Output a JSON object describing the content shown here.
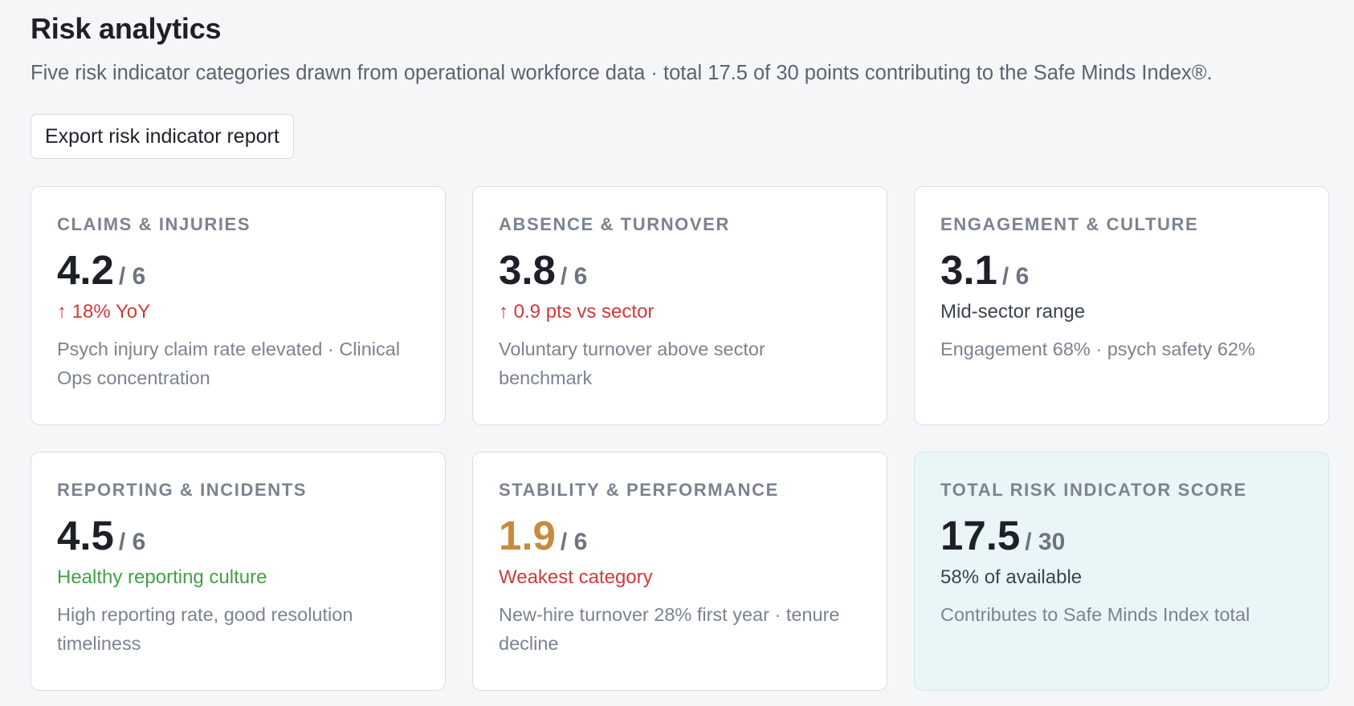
{
  "header": {
    "title": "Risk analytics",
    "subtitle": "Five risk indicator categories drawn from operational workforce data · total 17.5 of 30 points contributing to the Safe Minds Index®.",
    "export_label": "Export risk indicator report"
  },
  "cards": [
    {
      "label": "CLAIMS & INJURIES",
      "score": "4.2",
      "max": "/ 6",
      "status": "↑ 18% YoY",
      "description": "Psych injury claim rate elevated · Clinical Ops concentration"
    },
    {
      "label": "ABSENCE & TURNOVER",
      "score": "3.8",
      "max": "/ 6",
      "status": "↑ 0.9 pts vs sector",
      "description": "Voluntary turnover above sector benchmark"
    },
    {
      "label": "ENGAGEMENT & CULTURE",
      "score": "3.1",
      "max": "/ 6",
      "status": "Mid-sector range",
      "description": "Engagement 68% · psych safety 62%"
    },
    {
      "label": "REPORTING & INCIDENTS",
      "score": "4.5",
      "max": "/ 6",
      "status": "Healthy reporting culture",
      "description": "High reporting rate, good resolution timeliness"
    },
    {
      "label": "STABILITY & PERFORMANCE",
      "score": "1.9",
      "max": "/ 6",
      "status": "Weakest category",
      "description": "New-hire turnover 28% first year · tenure decline"
    },
    {
      "label": "TOTAL RISK INDICATOR SCORE",
      "score": "17.5",
      "max": "/ 30",
      "status": "58% of available",
      "description": "Contributes to Safe Minds Index total"
    }
  ],
  "colors": {
    "negative": "#d03a3a",
    "positive": "#43a047",
    "warning_score": "#c98a3e",
    "total_card_bg": "#eaf5f8"
  }
}
